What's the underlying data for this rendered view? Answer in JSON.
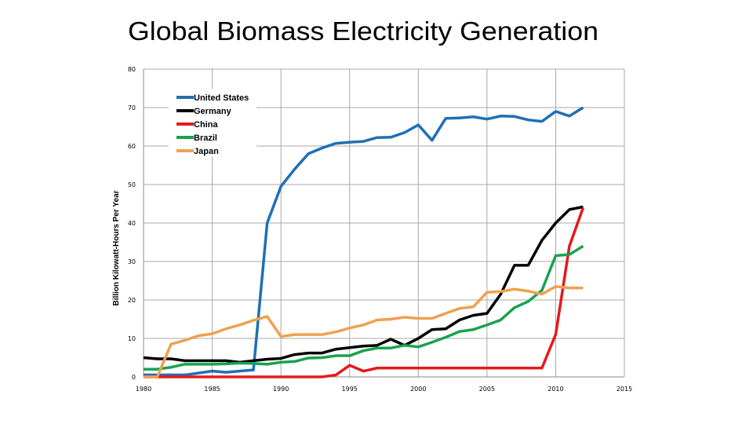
{
  "title": "Global Biomass Electricity Generation",
  "chart_data": {
    "type": "line",
    "title": "Global Biomass Electricity Generation",
    "xlabel": "",
    "ylabel": "Billion Kilowatt-Hours Per Year",
    "xlim": [
      1980,
      2015
    ],
    "ylim": [
      0,
      80
    ],
    "x_ticks": [
      1980,
      1985,
      1990,
      1995,
      2000,
      2005,
      2010,
      2015
    ],
    "y_ticks": [
      0,
      10,
      20,
      30,
      40,
      50,
      60,
      70,
      80
    ],
    "grid": true,
    "legend_position": "top-left",
    "x": [
      1980,
      1981,
      1982,
      1983,
      1984,
      1985,
      1986,
      1987,
      1988,
      1989,
      1990,
      1991,
      1992,
      1993,
      1994,
      1995,
      1996,
      1997,
      1998,
      1999,
      2000,
      2001,
      2002,
      2003,
      2004,
      2005,
      2006,
      2007,
      2008,
      2009,
      2010,
      2011,
      2012
    ],
    "series": [
      {
        "name": "United States",
        "color": "#1f6fb5",
        "values": [
          0.5,
          0.5,
          0.5,
          0.5,
          1,
          1.5,
          1.2,
          1.5,
          1.8,
          40,
          49.5,
          54,
          58,
          59.5,
          60.7,
          61,
          61.2,
          62.2,
          62.3,
          63.5,
          65.5,
          61.5,
          67.2,
          67.3,
          67.6,
          67,
          67.8,
          67.7,
          66.8,
          66.4,
          69,
          67.8,
          70
        ]
      },
      {
        "name": "Germany",
        "color": "#000000",
        "values": [
          5,
          4.7,
          4.7,
          4.2,
          4.2,
          4.2,
          4.2,
          3.8,
          4.2,
          4.6,
          4.8,
          5.8,
          6.2,
          6.2,
          7.2,
          7.6,
          8,
          8.2,
          9.8,
          8.2,
          10,
          12.3,
          12.5,
          14.8,
          16,
          16.5,
          21.5,
          29,
          29,
          35.5,
          40,
          43.5,
          44.2
        ]
      },
      {
        "name": "China",
        "color": "#e31a1c",
        "values": [
          0,
          0,
          0,
          0,
          0,
          0,
          0,
          0,
          0,
          0,
          0,
          0,
          0,
          0,
          0.5,
          3,
          1.5,
          2.3,
          2.3,
          2.3,
          2.3,
          2.3,
          2.3,
          2.3,
          2.3,
          2.3,
          2.3,
          2.3,
          2.3,
          2.3,
          11,
          34,
          44
        ]
      },
      {
        "name": "Brazil",
        "color": "#1aa150",
        "values": [
          2,
          2,
          2.5,
          3.3,
          3.3,
          3.3,
          3.4,
          3.6,
          3.5,
          3.3,
          3.8,
          4,
          4.9,
          5,
          5.5,
          5.5,
          6.8,
          7.5,
          7.5,
          8.2,
          7.8,
          9,
          10.3,
          11.8,
          12.3,
          13.5,
          14.8,
          18,
          19.6,
          22.5,
          31.5,
          31.8,
          34
        ]
      },
      {
        "name": "Japan",
        "color": "#f0a050",
        "values": [
          0,
          0,
          8.5,
          9.5,
          10.7,
          11.2,
          12.5,
          13.5,
          14.7,
          15.7,
          10.5,
          11,
          11,
          11,
          11.7,
          12.7,
          13.5,
          14.8,
          15,
          15.5,
          15.2,
          15.2,
          16.5,
          17.8,
          18.2,
          22,
          22.2,
          22.8,
          22.3,
          21.5,
          23.5,
          23.1,
          23.1
        ]
      }
    ]
  }
}
